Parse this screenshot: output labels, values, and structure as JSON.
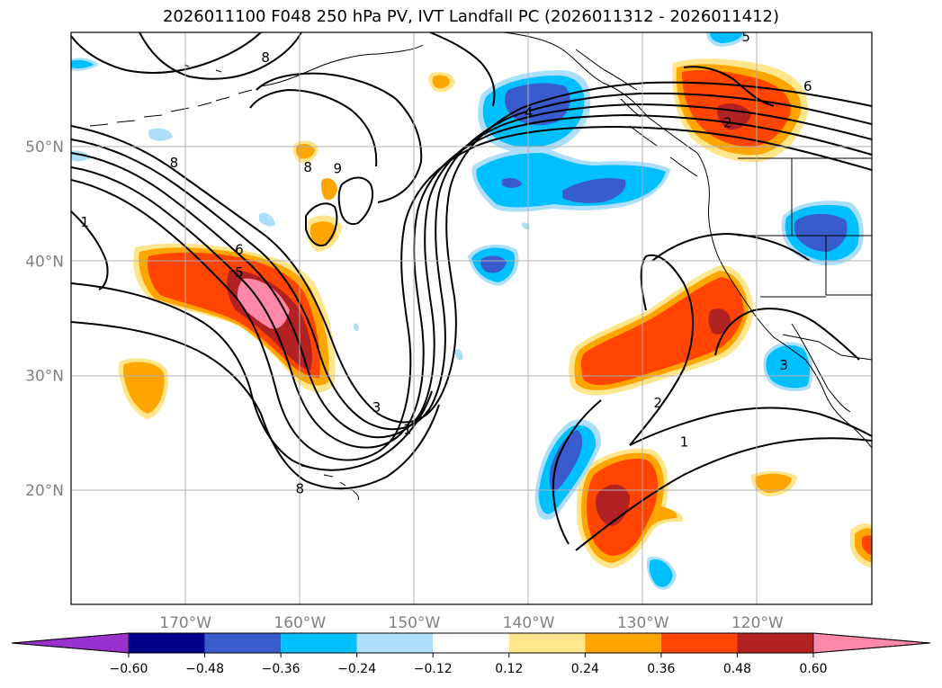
{
  "title": "2026011100 F048 250 hPa PV, IVT Landfall PC (2026011312 - 2026011412)",
  "map": {
    "lon_range": [
      -180,
      -110
    ],
    "lat_range": [
      10,
      60
    ],
    "lat_ticks": [
      {
        "value": 20,
        "label": "20°N"
      },
      {
        "value": 30,
        "label": "30°N"
      },
      {
        "value": 40,
        "label": "40°N"
      },
      {
        "value": 50,
        "label": "50°N"
      }
    ],
    "lon_ticks": [
      {
        "value": -170,
        "label": "170°W"
      },
      {
        "value": -160,
        "label": "160°W"
      },
      {
        "value": -150,
        "label": "150°W"
      },
      {
        "value": -140,
        "label": "140°W"
      },
      {
        "value": -130,
        "label": "130°W"
      },
      {
        "value": -120,
        "label": "120°W"
      }
    ],
    "grid": true,
    "contour_labels": [
      {
        "text": "8",
        "lon": -171,
        "lat": 48.6
      },
      {
        "text": "8",
        "lon": -163,
        "lat": 57.8
      },
      {
        "text": "8",
        "lon": -159.3,
        "lat": 48.2
      },
      {
        "text": "9",
        "lon": -156.7,
        "lat": 48.1
      },
      {
        "text": "6",
        "lon": -165.3,
        "lat": 41
      },
      {
        "text": "5",
        "lon": -165.3,
        "lat": 39
      },
      {
        "text": "4",
        "lon": -140,
        "lat": 53
      },
      {
        "text": "3",
        "lon": -153.3,
        "lat": 27.2
      },
      {
        "text": "1",
        "lon": -150.6,
        "lat": 25.3
      },
      {
        "text": "1",
        "lon": -178.8,
        "lat": 43.4
      },
      {
        "text": "8",
        "lon": -160,
        "lat": 20.1
      },
      {
        "text": "5",
        "lon": -121,
        "lat": 59.6
      },
      {
        "text": "6",
        "lon": -115.6,
        "lat": 55.3
      },
      {
        "text": "2",
        "lon": -122.6,
        "lat": 52.1
      },
      {
        "text": "2",
        "lon": -128.7,
        "lat": 27.6
      },
      {
        "text": "1",
        "lon": -126.4,
        "lat": 24.2
      },
      {
        "text": "3",
        "lon": -117.7,
        "lat": 30.9
      }
    ]
  },
  "colorbar": {
    "levels": [
      -0.6,
      -0.48,
      -0.36,
      -0.24,
      -0.12,
      0.12,
      0.24,
      0.36,
      0.48,
      0.6
    ],
    "tick_labels": [
      "−0.60",
      "−0.48",
      "−0.36",
      "−0.24",
      "−0.12",
      "0.12",
      "0.24",
      "0.36",
      "0.48",
      "0.60"
    ],
    "colors": [
      "#9932CC",
      "#00008B",
      "#3A5BCC",
      "#00BFFF",
      "#ADDFFA",
      "#FFFFFF",
      "#FFE68C",
      "#FFA500",
      "#FF4500",
      "#B22222",
      "#FF88AA"
    ],
    "extend": "both"
  }
}
